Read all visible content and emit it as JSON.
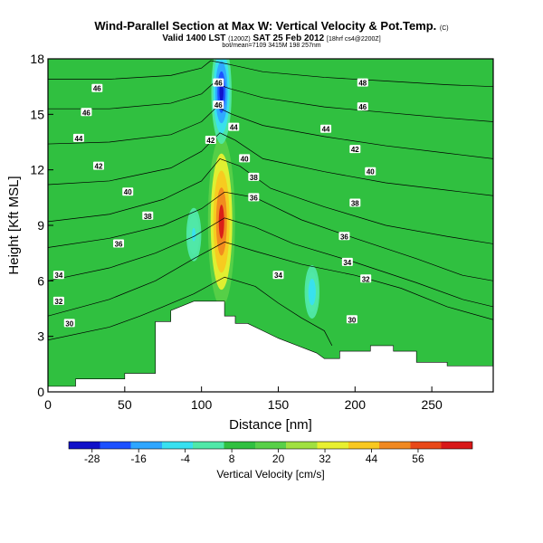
{
  "header": {
    "title": "Wind-Parallel Section at Max W: Vertical Velocity & Pot.Temp.",
    "title_unit": "(C)",
    "subtitle": "Valid 1400 LST",
    "subtitle_time": "(1200Z)",
    "subtitle_date": "SAT 25 Feb 2012",
    "subtitle_fcst": "[18hrf cs4@2200Z]",
    "subtitle_2": "bot/mean=7109 3415M 198 257nm"
  },
  "colors": {
    "background": "#ffffff",
    "terrain": "#ffffff",
    "contour": "#000000",
    "colorscale": [
      "#1010c8",
      "#1c50ff",
      "#2ea6ff",
      "#38e0f0",
      "#50e8a8",
      "#30c040",
      "#58d048",
      "#a0e040",
      "#e8f030",
      "#f8c820",
      "#f08820",
      "#e84818",
      "#d81818"
    ]
  },
  "chart_data": {
    "type": "heatmap",
    "title": "Wind-Parallel Section at Max W: Vertical Velocity & Pot.Temp.",
    "xlabel": "Distance [nm]",
    "ylabel": "Height [Kft MSL]",
    "xlim": [
      0,
      290
    ],
    "ylim": [
      0,
      18
    ],
    "x_ticks": [
      0,
      50,
      100,
      150,
      200,
      250
    ],
    "y_ticks": [
      0,
      3,
      6,
      9,
      12,
      15,
      18
    ],
    "colorbar": {
      "label": "Vertical Velocity [cm/s]",
      "range": [
        -34,
        70
      ],
      "tick_values": [
        -28,
        -16,
        -4,
        8,
        20,
        32,
        44,
        56
      ],
      "tick_labels": [
        "-28",
        "-16",
        "-4",
        "8",
        "20",
        "32",
        "44",
        "56"
      ]
    },
    "terrain_profile": [
      {
        "x": 0,
        "h": 0.3
      },
      {
        "x": 18,
        "h": 0.3
      },
      {
        "x": 18,
        "h": 0.7
      },
      {
        "x": 50,
        "h": 0.7
      },
      {
        "x": 50,
        "h": 1.0
      },
      {
        "x": 70,
        "h": 1.0
      },
      {
        "x": 70,
        "h": 3.8
      },
      {
        "x": 80,
        "h": 3.8
      },
      {
        "x": 80,
        "h": 4.4
      },
      {
        "x": 95,
        "h": 4.9
      },
      {
        "x": 115,
        "h": 4.9
      },
      {
        "x": 115,
        "h": 4.1
      },
      {
        "x": 122,
        "h": 4.1
      },
      {
        "x": 122,
        "h": 3.7
      },
      {
        "x": 130,
        "h": 3.7
      },
      {
        "x": 140,
        "h": 3.3
      },
      {
        "x": 150,
        "h": 2.9
      },
      {
        "x": 175,
        "h": 2.1
      },
      {
        "x": 180,
        "h": 1.8
      },
      {
        "x": 190,
        "h": 1.8
      },
      {
        "x": 190,
        "h": 2.2
      },
      {
        "x": 210,
        "h": 2.2
      },
      {
        "x": 210,
        "h": 2.5
      },
      {
        "x": 225,
        "h": 2.5
      },
      {
        "x": 225,
        "h": 2.2
      },
      {
        "x": 240,
        "h": 2.2
      },
      {
        "x": 240,
        "h": 1.6
      },
      {
        "x": 260,
        "h": 1.6
      },
      {
        "x": 260,
        "h": 1.4
      },
      {
        "x": 290,
        "h": 1.4
      }
    ],
    "velocity_features": [
      {
        "name": "updraft-core",
        "x": 113,
        "y": 9.2,
        "value": 62
      },
      {
        "name": "downdraft-upper",
        "x": 113,
        "y": 16.2,
        "value": -28
      },
      {
        "name": "downdraft-lee",
        "x": 172,
        "y": 5.4,
        "value": -6
      },
      {
        "name": "downdraft-mid",
        "x": 95,
        "y": 8.5,
        "value": -4
      }
    ],
    "isentropes": [
      {
        "theta": 30,
        "points": [
          [
            0,
            2.8
          ],
          [
            40,
            3.5
          ],
          [
            60,
            4.1
          ],
          [
            75,
            4.6
          ],
          [
            95,
            5.3
          ],
          [
            115,
            6.2
          ],
          [
            135,
            5.7
          ],
          [
            150,
            4.8
          ],
          [
            165,
            4.0
          ],
          [
            180,
            3.3
          ],
          [
            185,
            2.5
          ]
        ]
      },
      {
        "theta": 32,
        "points": [
          [
            0,
            4.1
          ],
          [
            40,
            5.0
          ],
          [
            70,
            6.0
          ],
          [
            95,
            7.2
          ],
          [
            115,
            8.1
          ],
          [
            135,
            7.6
          ],
          [
            165,
            6.9
          ],
          [
            200,
            6.3
          ],
          [
            230,
            5.6
          ],
          [
            260,
            4.6
          ],
          [
            290,
            3.9
          ]
        ]
      },
      {
        "theta": 34,
        "points": [
          [
            0,
            6.0
          ],
          [
            40,
            6.7
          ],
          [
            70,
            7.5
          ],
          [
            95,
            8.4
          ],
          [
            115,
            9.4
          ],
          [
            135,
            8.9
          ],
          [
            160,
            8.0
          ],
          [
            200,
            7.0
          ],
          [
            240,
            5.9
          ],
          [
            270,
            5.0
          ],
          [
            290,
            4.6
          ]
        ]
      },
      {
        "theta": 36,
        "points": [
          [
            0,
            7.8
          ],
          [
            40,
            8.3
          ],
          [
            75,
            9.0
          ],
          [
            100,
            9.9
          ],
          [
            115,
            10.8
          ],
          [
            135,
            10.5
          ],
          [
            165,
            9.3
          ],
          [
            200,
            8.3
          ],
          [
            240,
            7.2
          ],
          [
            270,
            6.3
          ],
          [
            290,
            6.0
          ]
        ]
      },
      {
        "theta": 38,
        "points": [
          [
            0,
            9.2
          ],
          [
            40,
            9.6
          ],
          [
            75,
            10.4
          ],
          [
            100,
            11.4
          ],
          [
            112,
            12.6
          ],
          [
            125,
            12.2
          ],
          [
            145,
            11.0
          ],
          [
            180,
            10.0
          ],
          [
            220,
            9.0
          ],
          [
            260,
            8.4
          ],
          [
            290,
            8.0
          ]
        ]
      },
      {
        "theta": 40,
        "points": [
          [
            0,
            11.2
          ],
          [
            40,
            11.4
          ],
          [
            80,
            12.1
          ],
          [
            100,
            13.0
          ],
          [
            112,
            14.0
          ],
          [
            122,
            13.6
          ],
          [
            140,
            12.6
          ],
          [
            180,
            11.9
          ],
          [
            220,
            11.3
          ],
          [
            260,
            10.9
          ],
          [
            290,
            10.6
          ]
        ]
      },
      {
        "theta": 42,
        "points": [
          [
            0,
            13.4
          ],
          [
            40,
            13.5
          ],
          [
            80,
            13.9
          ],
          [
            100,
            14.6
          ],
          [
            110,
            15.4
          ],
          [
            120,
            15.0
          ],
          [
            140,
            14.4
          ],
          [
            180,
            13.8
          ],
          [
            220,
            13.3
          ],
          [
            260,
            12.9
          ],
          [
            290,
            12.6
          ]
        ]
      },
      {
        "theta": 44,
        "points": [
          [
            0,
            15.3
          ],
          [
            40,
            15.3
          ],
          [
            80,
            15.6
          ],
          [
            100,
            16.1
          ],
          [
            108,
            16.7
          ],
          [
            118,
            16.4
          ],
          [
            140,
            15.9
          ],
          [
            180,
            15.4
          ],
          [
            220,
            15.1
          ],
          [
            260,
            14.8
          ],
          [
            290,
            14.6
          ]
        ]
      },
      {
        "theta": 46,
        "points": [
          [
            0,
            16.9
          ],
          [
            40,
            16.9
          ],
          [
            80,
            17.1
          ],
          [
            100,
            17.5
          ],
          [
            106,
            17.9
          ],
          [
            118,
            17.7
          ],
          [
            140,
            17.3
          ],
          [
            180,
            17.0
          ],
          [
            220,
            16.8
          ],
          [
            260,
            16.6
          ],
          [
            290,
            16.5
          ]
        ]
      }
    ],
    "contour_labels": [
      {
        "text": "46",
        "x": 32,
        "y": 16.4
      },
      {
        "text": "46",
        "x": 25,
        "y": 15.1
      },
      {
        "text": "44",
        "x": 20,
        "y": 13.7
      },
      {
        "text": "42",
        "x": 33,
        "y": 12.2
      },
      {
        "text": "40",
        "x": 52,
        "y": 10.8
      },
      {
        "text": "38",
        "x": 65,
        "y": 9.5
      },
      {
        "text": "36",
        "x": 46,
        "y": 8.0
      },
      {
        "text": "34",
        "x": 7,
        "y": 6.3
      },
      {
        "text": "32",
        "x": 7,
        "y": 4.9
      },
      {
        "text": "30",
        "x": 14,
        "y": 3.7
      },
      {
        "text": "46",
        "x": 111,
        "y": 16.7
      },
      {
        "text": "46",
        "x": 111,
        "y": 15.5
      },
      {
        "text": "44",
        "x": 121,
        "y": 14.3
      },
      {
        "text": "42",
        "x": 106,
        "y": 13.6
      },
      {
        "text": "40",
        "x": 128,
        "y": 12.6
      },
      {
        "text": "38",
        "x": 134,
        "y": 11.6
      },
      {
        "text": "36",
        "x": 134,
        "y": 10.5
      },
      {
        "text": "34",
        "x": 150,
        "y": 6.3
      },
      {
        "text": "48",
        "x": 205,
        "y": 16.7
      },
      {
        "text": "46",
        "x": 205,
        "y": 15.4
      },
      {
        "text": "44",
        "x": 181,
        "y": 14.2
      },
      {
        "text": "42",
        "x": 200,
        "y": 13.1
      },
      {
        "text": "40",
        "x": 210,
        "y": 11.9
      },
      {
        "text": "38",
        "x": 200,
        "y": 10.2
      },
      {
        "text": "36",
        "x": 193,
        "y": 8.4
      },
      {
        "text": "34",
        "x": 195,
        "y": 7.0
      },
      {
        "text": "32",
        "x": 207,
        "y": 6.1
      },
      {
        "text": "30",
        "x": 198,
        "y": 3.9
      }
    ]
  }
}
